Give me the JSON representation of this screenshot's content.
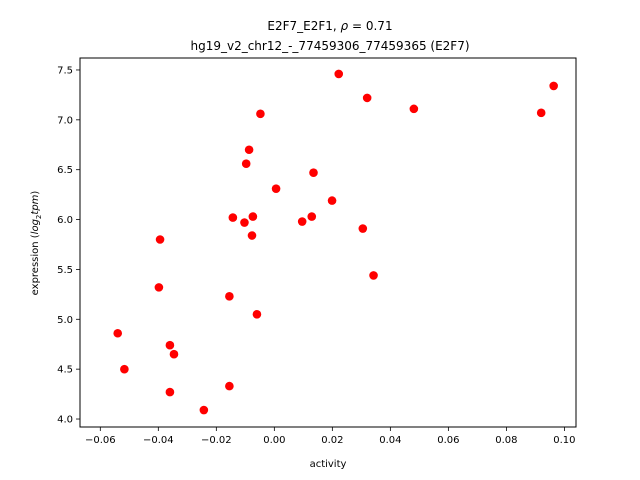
{
  "chart_data": {
    "type": "scatter",
    "title_prefix": "E2F7_E2F1, ",
    "title_rho": "ρ",
    "title_suffix": " = 0.71",
    "subtitle": "hg19_v2_chr12_-_77459306_77459365 (E2F7)",
    "xlabel": "activity",
    "ylabel_prefix": "expression (",
    "ylabel_log": "log",
    "ylabel_sub": "2",
    "ylabel_tpm": "tpm",
    "ylabel_suffix": ")",
    "xlim": [
      -0.067,
      0.104
    ],
    "ylim": [
      3.92,
      7.62
    ],
    "xticks": [
      -0.06,
      -0.04,
      -0.02,
      0.0,
      0.02,
      0.04,
      0.06,
      0.08,
      0.1
    ],
    "xtick_labels": [
      "−0.06",
      "−0.04",
      "−0.02",
      "0.00",
      "0.02",
      "0.04",
      "0.06",
      "0.08",
      "0.10"
    ],
    "yticks": [
      4.0,
      4.5,
      5.0,
      5.5,
      6.0,
      6.5,
      7.0,
      7.5
    ],
    "ytick_labels": [
      "4.0",
      "4.5",
      "5.0",
      "5.5",
      "6.0",
      "6.5",
      "7.0",
      "7.5"
    ],
    "marker_color": "#ff0000",
    "grid": false,
    "points": [
      {
        "x": -0.054,
        "y": 4.86
      },
      {
        "x": -0.0517,
        "y": 4.5
      },
      {
        "x": -0.0398,
        "y": 5.32
      },
      {
        "x": -0.0394,
        "y": 5.8
      },
      {
        "x": -0.036,
        "y": 4.74
      },
      {
        "x": -0.036,
        "y": 4.27
      },
      {
        "x": -0.0346,
        "y": 4.65
      },
      {
        "x": -0.0243,
        "y": 4.09
      },
      {
        "x": -0.0155,
        "y": 5.23
      },
      {
        "x": -0.0155,
        "y": 4.33
      },
      {
        "x": -0.0143,
        "y": 6.02
      },
      {
        "x": -0.0103,
        "y": 5.97
      },
      {
        "x": -0.0097,
        "y": 6.56
      },
      {
        "x": -0.0087,
        "y": 6.7
      },
      {
        "x": -0.0077,
        "y": 5.84
      },
      {
        "x": -0.0074,
        "y": 6.03
      },
      {
        "x": -0.006,
        "y": 5.05
      },
      {
        "x": -0.0048,
        "y": 7.06
      },
      {
        "x": 0.0006,
        "y": 6.31
      },
      {
        "x": 0.0096,
        "y": 5.98
      },
      {
        "x": 0.0129,
        "y": 6.03
      },
      {
        "x": 0.0135,
        "y": 6.47
      },
      {
        "x": 0.0199,
        "y": 6.19
      },
      {
        "x": 0.0222,
        "y": 7.46
      },
      {
        "x": 0.0305,
        "y": 5.91
      },
      {
        "x": 0.032,
        "y": 7.22
      },
      {
        "x": 0.0342,
        "y": 5.44
      },
      {
        "x": 0.0481,
        "y": 7.11
      },
      {
        "x": 0.092,
        "y": 7.07
      },
      {
        "x": 0.0963,
        "y": 7.34
      }
    ]
  }
}
